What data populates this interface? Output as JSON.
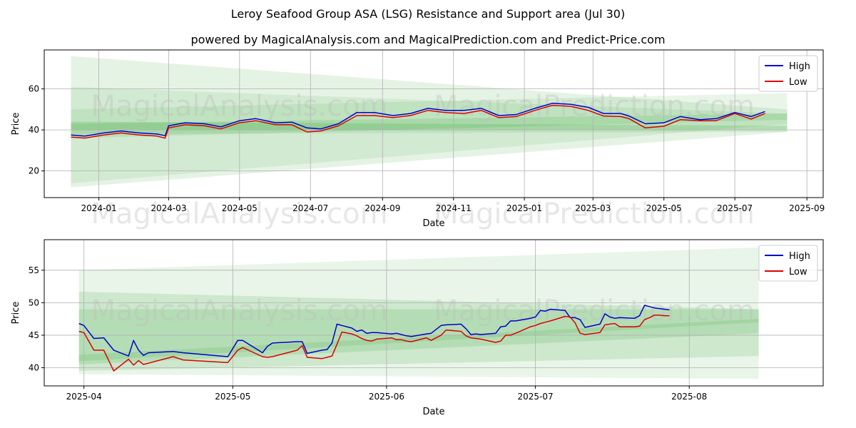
{
  "page": {
    "title": "Leroy Seafood Group ASA (LSG) Resistance and Support area (Jul 30)",
    "subtitle": "powered by MagicalAnalysis.com and MagicalPrediction.com and Predict-Price.com",
    "watermarks": [
      "MagicalAnalysis.com",
      "MagicalPrediction.com"
    ]
  },
  "colors": {
    "high": "#0000cc",
    "low": "#dd0000",
    "band": "#2ca02c",
    "grid": "#b0b0b0"
  },
  "chart_data": [
    {
      "type": "line",
      "title": "",
      "xlabel": "Date",
      "ylabel": "Price",
      "xlim": [
        "2023-11-15",
        "2025-09-15"
      ],
      "ylim": [
        7,
        79
      ],
      "x_ticks": [
        "2024-01",
        "2024-03",
        "2024-05",
        "2024-07",
        "2024-09",
        "2024-11",
        "2025-01",
        "2025-03",
        "2025-05",
        "2025-07",
        "2025-09"
      ],
      "y_ticks": [
        20,
        40,
        60
      ],
      "grid": true,
      "legend": {
        "position": "top-right",
        "entries": [
          "High",
          "Low"
        ]
      },
      "bands": [
        {
          "x": [
            "2023-12-08",
            "2025-08-15"
          ],
          "upper": [
            76,
            50
          ],
          "lower": [
            12,
            39
          ]
        },
        {
          "x": [
            "2023-12-08",
            "2025-08-15"
          ],
          "upper": [
            61,
            48
          ],
          "lower": [
            14,
            43
          ]
        },
        {
          "x": [
            "2023-12-08",
            "2025-08-15"
          ],
          "upper": [
            50,
            58
          ],
          "lower": [
            38,
            39
          ]
        },
        {
          "x": [
            "2023-12-08",
            "2025-08-15"
          ],
          "upper": [
            43,
            48
          ],
          "lower": [
            36,
            45
          ]
        },
        {
          "x": [
            "2023-12-08",
            "2025-08-15"
          ],
          "upper": [
            44,
            42
          ],
          "lower": [
            40,
            40
          ]
        }
      ],
      "series": [
        {
          "name": "High",
          "x": [
            "2023-12-08",
            "2023-12-20",
            "2024-01-05",
            "2024-01-20",
            "2024-02-05",
            "2024-02-20",
            "2024-02-27",
            "2024-03-01",
            "2024-03-15",
            "2024-04-01",
            "2024-04-15",
            "2024-05-01",
            "2024-05-15",
            "2024-06-01",
            "2024-06-15",
            "2024-06-28",
            "2024-07-10",
            "2024-07-25",
            "2024-08-10",
            "2024-08-25",
            "2024-09-10",
            "2024-09-25",
            "2024-10-10",
            "2024-10-25",
            "2024-11-10",
            "2024-11-25",
            "2024-12-10",
            "2024-12-25",
            "2025-01-10",
            "2025-01-25",
            "2025-02-10",
            "2025-02-25",
            "2025-03-10",
            "2025-03-25",
            "2025-04-01",
            "2025-04-15",
            "2025-05-01",
            "2025-05-15",
            "2025-06-01",
            "2025-06-15",
            "2025-07-01",
            "2025-07-15",
            "2025-07-27"
          ],
          "y": [
            37.5,
            37,
            38.5,
            39.5,
            38.5,
            38,
            37.2,
            42,
            43.5,
            43,
            41.5,
            44.5,
            45.5,
            43.5,
            43.8,
            41,
            40.5,
            43,
            48.5,
            48.5,
            47,
            48,
            50.5,
            49.5,
            49.5,
            50.5,
            47,
            47.5,
            50.5,
            53,
            52.5,
            51,
            48,
            48,
            46.8,
            43,
            43.5,
            46.5,
            45,
            45.5,
            48.5,
            46.5,
            49
          ]
        },
        {
          "name": "Low",
          "x": [
            "2023-12-08",
            "2023-12-20",
            "2024-01-05",
            "2024-01-20",
            "2024-02-05",
            "2024-02-20",
            "2024-02-27",
            "2024-03-01",
            "2024-03-15",
            "2024-04-01",
            "2024-04-15",
            "2024-05-01",
            "2024-05-15",
            "2024-06-01",
            "2024-06-15",
            "2024-06-28",
            "2024-07-10",
            "2024-07-25",
            "2024-08-10",
            "2024-08-25",
            "2024-09-10",
            "2024-09-25",
            "2024-10-10",
            "2024-10-25",
            "2024-11-10",
            "2024-11-25",
            "2024-12-10",
            "2024-12-25",
            "2025-01-10",
            "2025-01-25",
            "2025-02-10",
            "2025-02-25",
            "2025-03-10",
            "2025-03-25",
            "2025-04-01",
            "2025-04-15",
            "2025-05-01",
            "2025-05-15",
            "2025-06-01",
            "2025-06-15",
            "2025-07-01",
            "2025-07-15",
            "2025-07-27"
          ],
          "y": [
            36.5,
            36,
            37.5,
            38.5,
            37.5,
            37,
            36,
            41,
            42.5,
            42,
            40.5,
            43.5,
            44.5,
            42.5,
            42.5,
            39,
            39.5,
            42,
            47,
            47,
            46,
            47,
            49.5,
            48.5,
            48,
            49.5,
            46,
            46.5,
            49.5,
            52,
            51.5,
            49.5,
            46.8,
            46.5,
            45.5,
            41,
            41.8,
            45,
            44.5,
            44.5,
            48,
            45.3,
            48
          ]
        }
      ]
    },
    {
      "type": "line",
      "title": "",
      "xlabel": "Date",
      "ylabel": "Price",
      "xlim": [
        "2025-03-24",
        "2025-08-28"
      ],
      "ylim": [
        37.2,
        59.7
      ],
      "x_ticks": [
        "2025-04",
        "2025-05",
        "2025-06",
        "2025-07",
        "2025-08"
      ],
      "y_ticks": [
        40,
        45,
        50,
        55
      ],
      "grid": true,
      "legend": {
        "position": "top-right",
        "entries": [
          "High",
          "Low"
        ]
      },
      "bands": [
        {
          "x": [
            "2025-03-31",
            "2025-08-15"
          ],
          "upper": [
            55,
            58.5
          ],
          "lower": [
            39,
            38.3
          ]
        },
        {
          "x": [
            "2025-03-31",
            "2025-08-15"
          ],
          "upper": [
            51.7,
            49
          ],
          "lower": [
            39.5,
            41.8
          ]
        },
        {
          "x": [
            "2025-03-31",
            "2025-08-15"
          ],
          "upper": [
            49,
            49
          ],
          "lower": [
            40.5,
            45.3
          ]
        },
        {
          "x": [
            "2025-03-31",
            "2025-08-15"
          ],
          "upper": [
            42,
            47.5
          ],
          "lower": [
            41,
            47
          ]
        }
      ],
      "series": [
        {
          "name": "High",
          "x": [
            "2025-03-31",
            "2025-04-01",
            "2025-04-03",
            "2025-04-05",
            "2025-04-07",
            "2025-04-10",
            "2025-04-11",
            "2025-04-12",
            "2025-04-13",
            "2025-04-14",
            "2025-04-19",
            "2025-04-21",
            "2025-04-30",
            "2025-05-02",
            "2025-05-03",
            "2025-05-07",
            "2025-05-08",
            "2025-05-09",
            "2025-05-14",
            "2025-05-15",
            "2025-05-16",
            "2025-05-19",
            "2025-05-20",
            "2025-05-21",
            "2025-05-22",
            "2025-05-23",
            "2025-05-25",
            "2025-05-26",
            "2025-05-27",
            "2025-05-28",
            "2025-05-29",
            "2025-05-30",
            "2025-06-02",
            "2025-06-03",
            "2025-06-04",
            "2025-06-05",
            "2025-06-06",
            "2025-06-09",
            "2025-06-10",
            "2025-06-12",
            "2025-06-13",
            "2025-06-16",
            "2025-06-17",
            "2025-06-18",
            "2025-06-19",
            "2025-06-20",
            "2025-06-23",
            "2025-06-24",
            "2025-06-25",
            "2025-06-26",
            "2025-06-27",
            "2025-06-30",
            "2025-07-01",
            "2025-07-02",
            "2025-07-03",
            "2025-07-04",
            "2025-07-07",
            "2025-07-08",
            "2025-07-09",
            "2025-07-10",
            "2025-07-11",
            "2025-07-14",
            "2025-07-15",
            "2025-07-16",
            "2025-07-17",
            "2025-07-18",
            "2025-07-21",
            "2025-07-22",
            "2025-07-23",
            "2025-07-24",
            "2025-07-25",
            "2025-07-26",
            "2025-07-27",
            "2025-07-28"
          ],
          "y": [
            46.8,
            46.5,
            44.5,
            44.6,
            42.7,
            41.8,
            44.2,
            42.7,
            41.9,
            42.3,
            42.5,
            42.3,
            41.7,
            44.2,
            44.2,
            42.3,
            43.3,
            43.8,
            44,
            44,
            42.2,
            42.7,
            42.8,
            43.8,
            46.7,
            46.5,
            46.1,
            45.6,
            45.8,
            45.3,
            45.4,
            45.4,
            45.2,
            45.3,
            45.1,
            44.9,
            44.8,
            45.2,
            45.3,
            46.5,
            46.6,
            46.7,
            46,
            45.1,
            45.2,
            45.1,
            45.3,
            46.3,
            46.4,
            47.2,
            47.2,
            47.6,
            47.8,
            48.8,
            48.7,
            49,
            48.8,
            47.7,
            47.7,
            47.4,
            46.2,
            46.7,
            48.3,
            47.8,
            47.6,
            47.7,
            47.6,
            48,
            49.6,
            49.4,
            49.2,
            49.1,
            49,
            48.9
          ]
        },
        {
          "name": "Low",
          "x": [
            "2025-03-31",
            "2025-04-01",
            "2025-04-03",
            "2025-04-05",
            "2025-04-07",
            "2025-04-10",
            "2025-04-11",
            "2025-04-12",
            "2025-04-13",
            "2025-04-14",
            "2025-04-19",
            "2025-04-21",
            "2025-04-30",
            "2025-05-02",
            "2025-05-03",
            "2025-05-07",
            "2025-05-08",
            "2025-05-09",
            "2025-05-14",
            "2025-05-15",
            "2025-05-16",
            "2025-05-19",
            "2025-05-20",
            "2025-05-21",
            "2025-05-22",
            "2025-05-23",
            "2025-05-25",
            "2025-05-26",
            "2025-05-27",
            "2025-05-28",
            "2025-05-29",
            "2025-05-30",
            "2025-06-02",
            "2025-06-03",
            "2025-06-04",
            "2025-06-05",
            "2025-06-06",
            "2025-06-09",
            "2025-06-10",
            "2025-06-12",
            "2025-06-13",
            "2025-06-16",
            "2025-06-17",
            "2025-06-18",
            "2025-06-19",
            "2025-06-20",
            "2025-06-23",
            "2025-06-24",
            "2025-06-25",
            "2025-06-26",
            "2025-06-27",
            "2025-06-30",
            "2025-07-01",
            "2025-07-02",
            "2025-07-03",
            "2025-07-04",
            "2025-07-07",
            "2025-07-08",
            "2025-07-09",
            "2025-07-10",
            "2025-07-11",
            "2025-07-14",
            "2025-07-15",
            "2025-07-16",
            "2025-07-17",
            "2025-07-18",
            "2025-07-21",
            "2025-07-22",
            "2025-07-23",
            "2025-07-24",
            "2025-07-25",
            "2025-07-26",
            "2025-07-27",
            "2025-07-28"
          ],
          "y": [
            45.6,
            45.4,
            42.7,
            42.7,
            39.5,
            41.3,
            40.4,
            41.1,
            40.5,
            40.7,
            41.7,
            41.2,
            40.8,
            42.7,
            43.1,
            41.7,
            41.6,
            41.7,
            42.7,
            43.4,
            41.6,
            41.4,
            41.6,
            41.8,
            43.6,
            45.5,
            45.2,
            44.9,
            44.5,
            44.2,
            44.1,
            44.4,
            44.6,
            44.3,
            44.3,
            44.1,
            44.0,
            44.6,
            44.2,
            45,
            45.8,
            45.6,
            44.9,
            44.6,
            44.5,
            44.4,
            43.9,
            44.1,
            45,
            45,
            45.3,
            46.3,
            46.5,
            46.8,
            47,
            47.2,
            47.9,
            47.8,
            46.9,
            45.3,
            45.1,
            45.4,
            46.6,
            46.7,
            46.8,
            46.3,
            46.3,
            46.4,
            47.4,
            47.7,
            48.1,
            48.1,
            48,
            48
          ]
        }
      ]
    }
  ]
}
